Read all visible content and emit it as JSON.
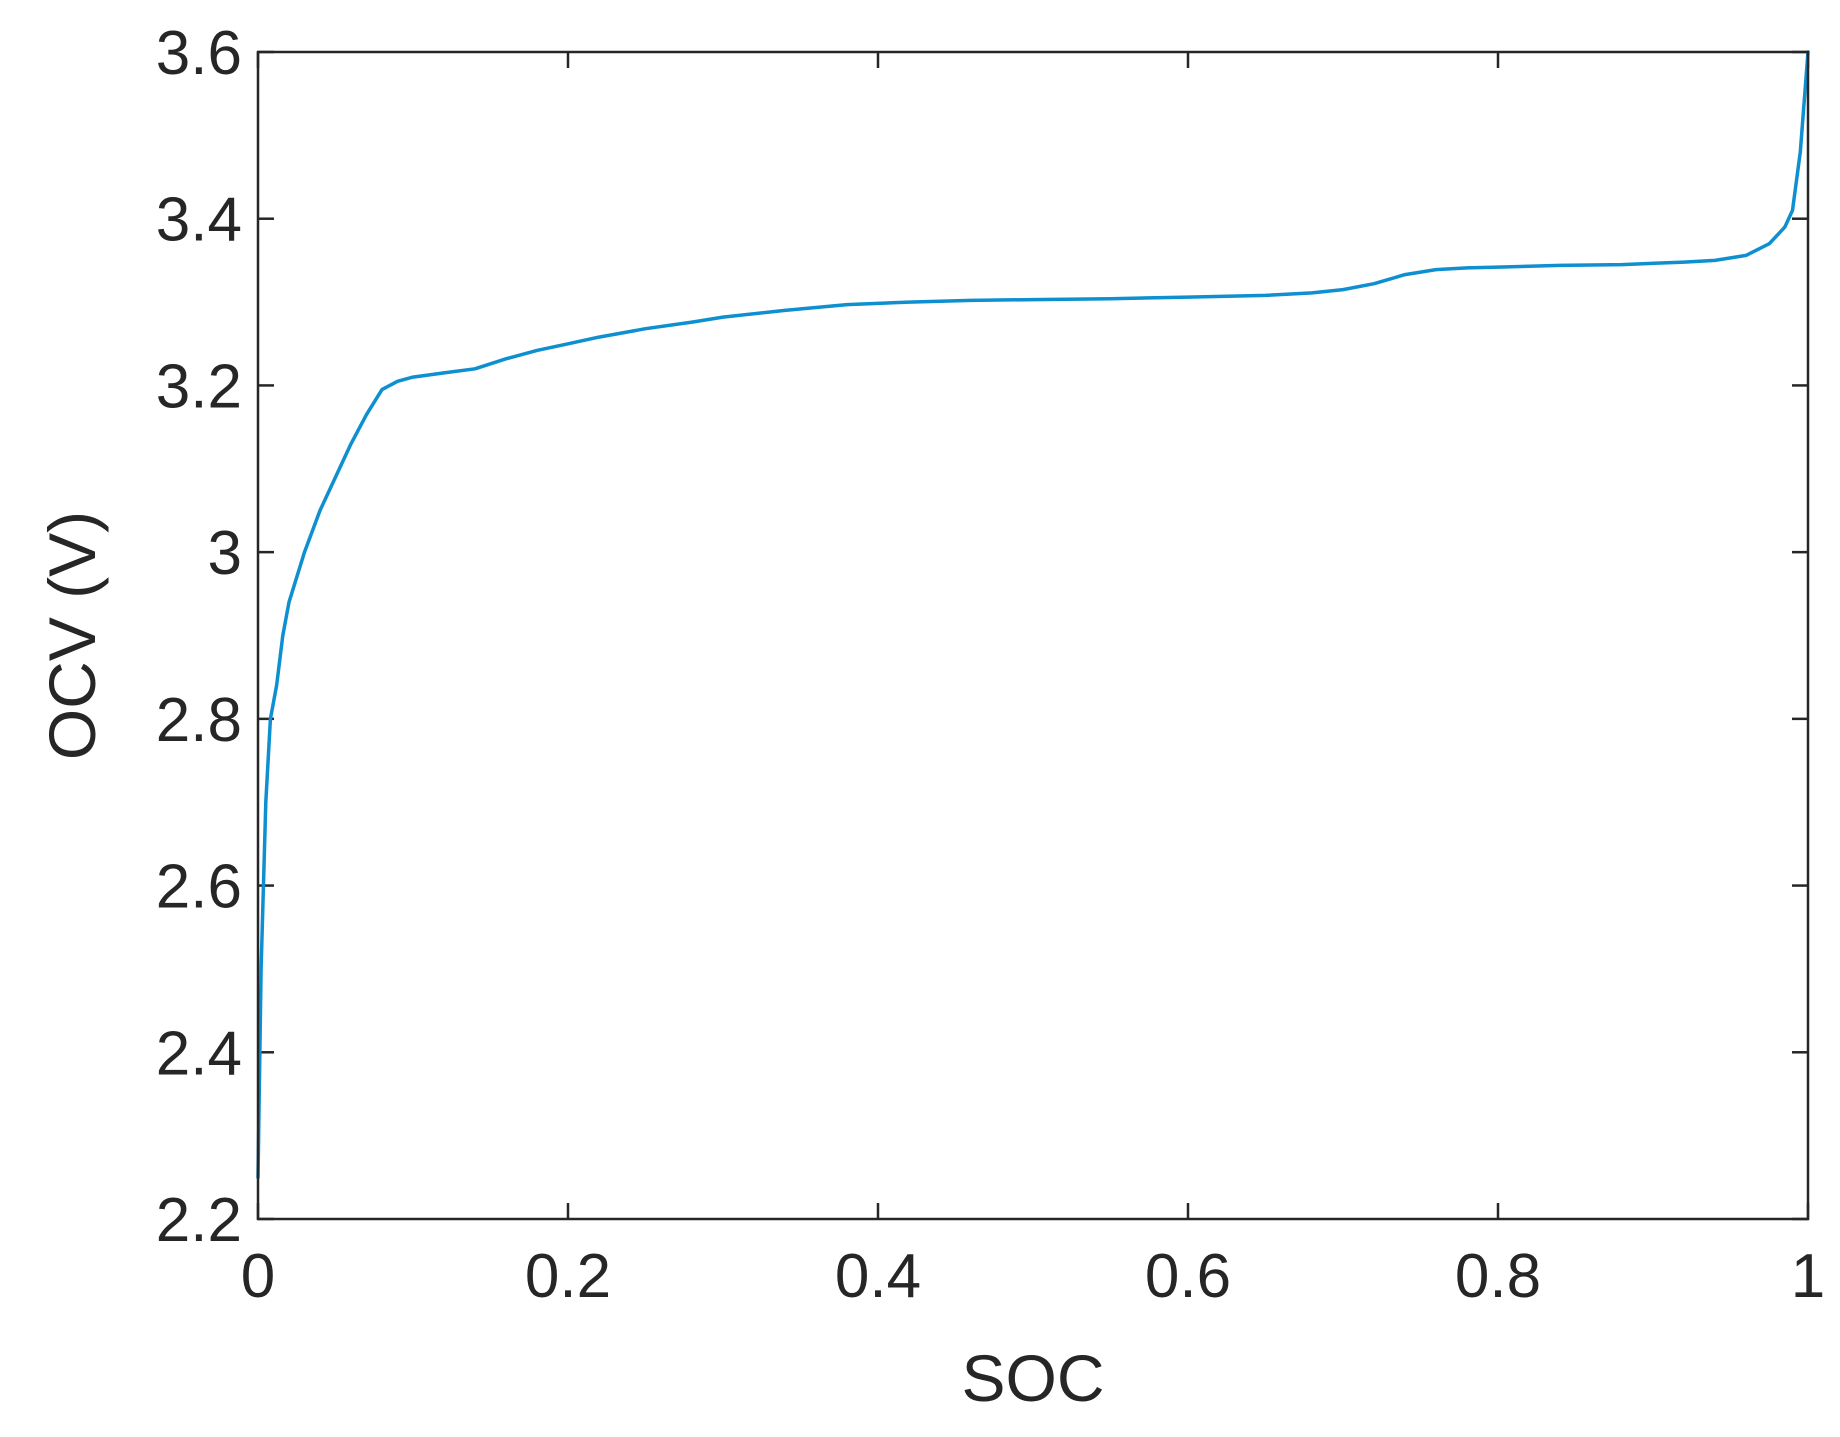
{
  "chart_data": {
    "type": "line",
    "title": "",
    "xlabel": "SOC",
    "ylabel": "OCV (V)",
    "xlim": [
      0,
      1
    ],
    "ylim": [
      2.2,
      3.6
    ],
    "xticks": [
      0,
      0.2,
      0.4,
      0.6,
      0.8,
      1
    ],
    "xtick_labels": [
      "0",
      "0.2",
      "0.4",
      "0.6",
      "0.8",
      "1"
    ],
    "yticks": [
      2.2,
      2.4,
      2.6,
      2.8,
      3.0,
      3.2,
      3.4,
      3.6
    ],
    "ytick_labels": [
      "2.2",
      "2.4",
      "2.6",
      "2.8",
      "3",
      "3.2",
      "3.4",
      "3.6"
    ],
    "grid": false,
    "line_color": "#0E8FD0",
    "axis_color": "#262626",
    "series": [
      {
        "x": [
          0,
          0.002,
          0.005,
          0.008,
          0.012,
          0.016,
          0.02,
          0.03,
          0.04,
          0.05,
          0.06,
          0.07,
          0.08,
          0.09,
          0.1,
          0.12,
          0.14,
          0.16,
          0.18,
          0.2,
          0.22,
          0.25,
          0.28,
          0.3,
          0.34,
          0.38,
          0.42,
          0.46,
          0.5,
          0.55,
          0.6,
          0.65,
          0.68,
          0.7,
          0.72,
          0.74,
          0.76,
          0.78,
          0.8,
          0.84,
          0.88,
          0.92,
          0.94,
          0.96,
          0.975,
          0.985,
          0.99,
          0.995,
          1.0
        ],
        "y": [
          2.25,
          2.5,
          2.7,
          2.8,
          2.84,
          2.9,
          2.94,
          3.0,
          3.05,
          3.09,
          3.13,
          3.165,
          3.195,
          3.205,
          3.21,
          3.215,
          3.22,
          3.232,
          3.242,
          3.25,
          3.258,
          3.268,
          3.276,
          3.282,
          3.29,
          3.297,
          3.3,
          3.302,
          3.303,
          3.304,
          3.306,
          3.308,
          3.311,
          3.315,
          3.322,
          3.333,
          3.339,
          3.341,
          3.342,
          3.344,
          3.345,
          3.348,
          3.35,
          3.356,
          3.37,
          3.39,
          3.41,
          3.48,
          3.6
        ]
      }
    ]
  }
}
